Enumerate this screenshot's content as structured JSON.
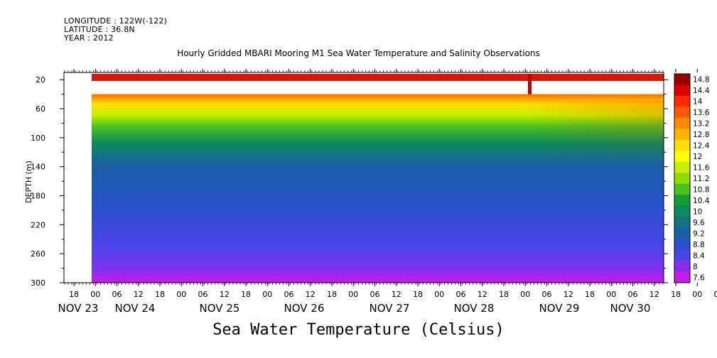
{
  "header": {
    "longitude": "LONGITUDE : 122W(-122)",
    "latitude": "LATITUDE : 36.8N",
    "year": "YEAR : 2012"
  },
  "chart_data": {
    "type": "heatmap",
    "title": "Hourly Gridded MBARI Mooring M1 Sea Water Temperature and Salinity Observations",
    "bottom_title": "Sea Water Temperature (Celsius)",
    "ylabel": "DEPTH (m)",
    "ylim": [
      300,
      10
    ],
    "y_inverted": true,
    "y_ticks": [
      20,
      60,
      100,
      140,
      180,
      220,
      260,
      300
    ],
    "x_hour_ticks": [
      "18",
      "00",
      "06",
      "12",
      "18",
      "00",
      "06",
      "12",
      "18",
      "00",
      "06",
      "12",
      "18",
      "00",
      "06",
      "12",
      "18",
      "00",
      "06",
      "12",
      "18",
      "00",
      "06",
      "12",
      "18",
      "00",
      "06",
      "12",
      "18",
      "00",
      "06",
      "12"
    ],
    "x_day_labels": [
      "NOV 23",
      "NOV 24",
      "NOV 25",
      "NOV 26",
      "NOV 27",
      "NOV 28",
      "NOV 29",
      "NOV 30"
    ],
    "colorbar": {
      "levels": [
        14.8,
        14.4,
        14,
        13.6,
        13.2,
        12.8,
        12.4,
        12,
        11.6,
        11.2,
        10.8,
        10.4,
        10,
        9.6,
        9.2,
        8.8,
        8.4,
        8,
        7.6
      ],
      "colors": [
        "#990000",
        "#dd0000",
        "#ff2a00",
        "#ff5a00",
        "#ff8c00",
        "#ffb400",
        "#ffdd00",
        "#ffff00",
        "#c8f000",
        "#8edc00",
        "#4cc21e",
        "#139e34",
        "#0b8a5c",
        "#11747f",
        "#1a5ea6",
        "#2a50cc",
        "#4a44e8",
        "#8a2cf0",
        "#c81ae8"
      ]
    },
    "surface_temp_c": 14.2,
    "mixed_layer_top_m": 40,
    "deep_temp_c": 7.8
  }
}
